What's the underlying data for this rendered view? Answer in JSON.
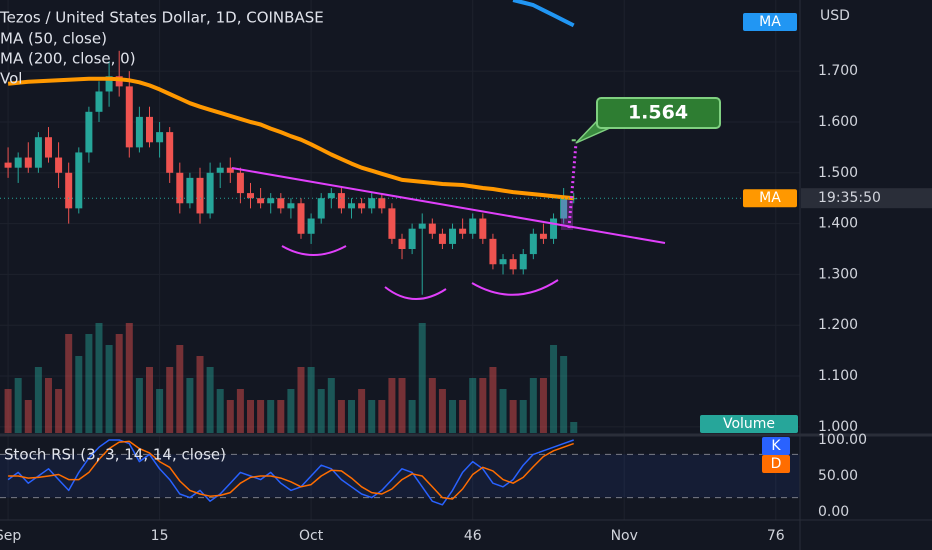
{
  "chart_data": {
    "type": "candlestick",
    "title": "Tezos / United States Dollar, 1D, COINBASE",
    "currency": "USD",
    "up_color": "#26a69a",
    "down_color": "#ef5350",
    "ohlc": {
      "open": [
        1.52,
        1.51,
        1.53,
        1.51,
        1.57,
        1.53,
        1.5,
        1.43,
        1.54,
        1.62,
        1.66,
        1.69,
        1.67,
        1.55,
        1.61,
        1.56,
        1.58,
        1.5,
        1.44,
        1.49,
        1.42,
        1.5,
        1.51,
        1.5,
        1.46,
        1.45,
        1.44,
        1.45,
        1.43,
        1.44,
        1.38,
        1.41,
        1.45,
        1.46,
        1.43,
        1.44,
        1.43,
        1.45,
        1.43,
        1.37,
        1.35,
        1.39,
        1.4,
        1.38,
        1.36,
        1.39,
        1.38,
        1.41,
        1.37,
        1.32,
        1.33,
        1.31,
        1.34,
        1.38,
        1.37,
        1.41,
        1.45
      ],
      "high": [
        1.55,
        1.54,
        1.56,
        1.58,
        1.59,
        1.56,
        1.52,
        1.55,
        1.63,
        1.68,
        1.72,
        1.74,
        1.7,
        1.63,
        1.63,
        1.6,
        1.59,
        1.52,
        1.5,
        1.51,
        1.52,
        1.52,
        1.53,
        1.51,
        1.48,
        1.47,
        1.46,
        1.46,
        1.45,
        1.45,
        1.42,
        1.46,
        1.47,
        1.47,
        1.45,
        1.45,
        1.46,
        1.46,
        1.44,
        1.38,
        1.4,
        1.42,
        1.41,
        1.39,
        1.4,
        1.41,
        1.42,
        1.42,
        1.38,
        1.34,
        1.34,
        1.35,
        1.39,
        1.4,
        1.42,
        1.47,
        1.46
      ],
      "low": [
        1.49,
        1.48,
        1.5,
        1.5,
        1.52,
        1.47,
        1.4,
        1.42,
        1.52,
        1.6,
        1.63,
        1.65,
        1.53,
        1.54,
        1.55,
        1.53,
        1.48,
        1.42,
        1.43,
        1.4,
        1.41,
        1.47,
        1.48,
        1.44,
        1.43,
        1.43,
        1.42,
        1.42,
        1.41,
        1.37,
        1.36,
        1.4,
        1.43,
        1.42,
        1.41,
        1.42,
        1.42,
        1.42,
        1.36,
        1.33,
        1.34,
        1.26,
        1.37,
        1.35,
        1.35,
        1.37,
        1.37,
        1.36,
        1.31,
        1.3,
        1.3,
        1.3,
        1.33,
        1.36,
        1.36,
        1.4,
        1.44
      ],
      "close": [
        1.51,
        1.53,
        1.51,
        1.57,
        1.53,
        1.5,
        1.43,
        1.54,
        1.62,
        1.66,
        1.69,
        1.67,
        1.55,
        1.61,
        1.56,
        1.58,
        1.5,
        1.44,
        1.49,
        1.42,
        1.5,
        1.51,
        1.5,
        1.46,
        1.45,
        1.44,
        1.45,
        1.43,
        1.44,
        1.38,
        1.41,
        1.45,
        1.46,
        1.43,
        1.44,
        1.43,
        1.45,
        1.43,
        1.37,
        1.35,
        1.39,
        1.4,
        1.38,
        1.36,
        1.39,
        1.38,
        1.41,
        1.37,
        1.32,
        1.33,
        1.31,
        1.34,
        1.38,
        1.37,
        1.41,
        1.45,
        1.45
      ]
    },
    "series": [
      {
        "name": "MA (50, close)",
        "axis_label": "MA",
        "color": "#ff9800",
        "values": [
          1.675,
          1.677,
          1.679,
          1.68,
          1.681,
          1.682,
          1.683,
          1.684,
          1.685,
          1.685,
          1.685,
          1.684,
          1.682,
          1.678,
          1.672,
          1.664,
          1.655,
          1.646,
          1.637,
          1.63,
          1.624,
          1.618,
          1.612,
          1.606,
          1.6,
          1.595,
          1.587,
          1.58,
          1.572,
          1.565,
          1.556,
          1.546,
          1.536,
          1.527,
          1.518,
          1.51,
          1.504,
          1.498,
          1.492,
          1.486,
          1.484,
          1.482,
          1.48,
          1.478,
          1.477,
          1.476,
          1.473,
          1.47,
          1.468,
          1.465,
          1.462,
          1.46,
          1.458,
          1.456,
          1.454,
          1.452,
          1.45
        ]
      },
      {
        "name": "MA (200, close, 0)",
        "axis_label": "MA",
        "color": "#2196f3",
        "values": [
          null,
          null,
          null,
          null,
          null,
          null,
          null,
          null,
          null,
          null,
          null,
          null,
          null,
          null,
          null,
          null,
          null,
          null,
          null,
          null,
          null,
          null,
          null,
          null,
          null,
          null,
          null,
          null,
          null,
          null,
          null,
          null,
          null,
          null,
          null,
          null,
          null,
          null,
          null,
          null,
          null,
          null,
          null,
          null,
          null,
          null,
          null,
          null,
          null,
          null,
          1.84,
          1.835,
          1.83,
          1.82,
          1.81,
          1.8,
          1.79
        ]
      }
    ],
    "volume": {
      "name": "Vol",
      "axis_label": "Volume",
      "values": [
        4,
        5,
        3,
        6,
        5,
        4,
        9,
        7,
        9,
        10,
        8,
        9,
        10,
        5,
        6,
        4,
        6,
        8,
        5,
        7,
        6,
        4,
        3,
        4,
        3,
        3,
        3,
        3,
        4,
        6,
        6,
        4,
        5,
        3,
        3,
        4,
        3,
        3,
        5,
        5,
        3,
        10,
        5,
        4,
        3,
        3,
        5,
        5,
        6,
        4,
        3,
        3,
        5,
        5,
        8,
        7,
        1
      ]
    },
    "target_label": "1.564",
    "target_value": 1.564,
    "countdown": "19:35:50",
    "last_price": 1.45,
    "xlim": [
      -0.8,
      78.4
    ],
    "xticks": [
      {
        "value": 0,
        "label": "Sep"
      },
      15,
      {
        "value": 30,
        "label": "Oct"
      },
      46,
      {
        "value": 61,
        "label": "Nov"
      },
      76
    ],
    "ylim": [
      0.984,
      1.84
    ],
    "yticks": [
      {
        "value": 1,
        "label": "1.000"
      },
      {
        "value": 1.1,
        "label": "1.100"
      },
      {
        "value": 1.2,
        "label": "1.200"
      },
      {
        "value": 1.3,
        "label": "1.300"
      },
      {
        "value": 1.4,
        "label": "1.400"
      },
      {
        "value": 1.5,
        "label": "1.500"
      },
      {
        "value": 1.6,
        "label": "1.600"
      },
      {
        "value": 1.7,
        "label": "1.700"
      }
    ],
    "grid": true,
    "stoch": {
      "title": "Stoch RSI (3, 3, 14, 14, close)",
      "ylim": [
        -11.1,
        106.9
      ],
      "yticks": [
        {
          "value": 0,
          "label": "0.00"
        },
        {
          "value": 50,
          "label": "50.00"
        },
        {
          "value": 100,
          "label": "100.00"
        }
      ],
      "bands": [
        20,
        80
      ],
      "k": {
        "name": "K",
        "color": "#2962ff",
        "values": [
          45,
          55,
          40,
          50,
          60,
          45,
          30,
          55,
          75,
          90,
          100,
          100,
          95,
          70,
          80,
          60,
          45,
          25,
          20,
          30,
          15,
          25,
          40,
          55,
          50,
          45,
          55,
          40,
          30,
          35,
          50,
          65,
          60,
          45,
          35,
          25,
          20,
          30,
          45,
          60,
          55,
          35,
          15,
          10,
          30,
          55,
          70,
          60,
          40,
          35,
          45,
          65,
          80,
          85,
          90,
          95,
          100
        ]
      },
      "d": {
        "name": "D",
        "color": "#ff6d00",
        "values": [
          50,
          50,
          47,
          48,
          50,
          52,
          45,
          45,
          55,
          73,
          88,
          97,
          98,
          88,
          82,
          70,
          62,
          43,
          30,
          25,
          22,
          23,
          27,
          40,
          48,
          50,
          50,
          47,
          42,
          35,
          38,
          50,
          58,
          57,
          47,
          35,
          27,
          25,
          32,
          45,
          53,
          50,
          35,
          20,
          18,
          32,
          52,
          62,
          57,
          45,
          40,
          48,
          63,
          77,
          85,
          90,
          95
        ]
      }
    }
  }
}
